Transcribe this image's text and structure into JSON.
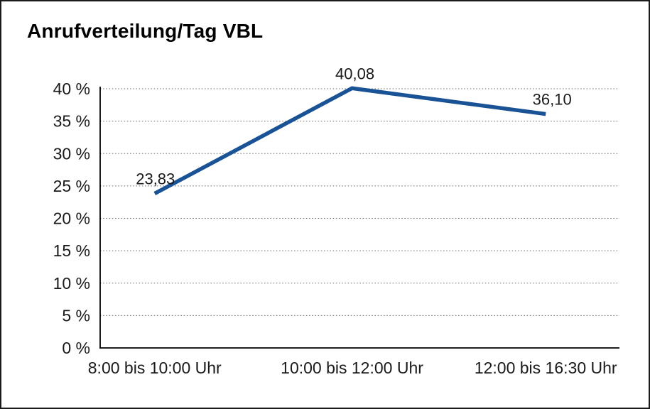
{
  "chart_data": {
    "type": "line",
    "title": "Anrufverteilung/Tag VBL",
    "categories": [
      "8:00 bis 10:00 Uhr",
      "10:00 bis 12:00 Uhr",
      "12:00 bis 16:30 Uhr"
    ],
    "values": [
      23.83,
      40.08,
      36.1
    ],
    "point_labels": [
      "23,83",
      "40,08",
      "36,10"
    ],
    "xlabel": "",
    "ylabel": "",
    "ylim": [
      0,
      40
    ],
    "ytick_step": 5,
    "ytick_labels": [
      "0 %",
      "5 %",
      "10 %",
      "15 %",
      "20 %",
      "25 %",
      "30 %",
      "35 %",
      "40 %"
    ],
    "grid": "horizontal-dotted",
    "legend": "none",
    "colors": {
      "line": "#1A5296",
      "grid": "#6e6e6e",
      "axis": "#000000",
      "text": "#1a1a1a",
      "border": "#1a1a1a",
      "background": "#ffffff"
    }
  }
}
